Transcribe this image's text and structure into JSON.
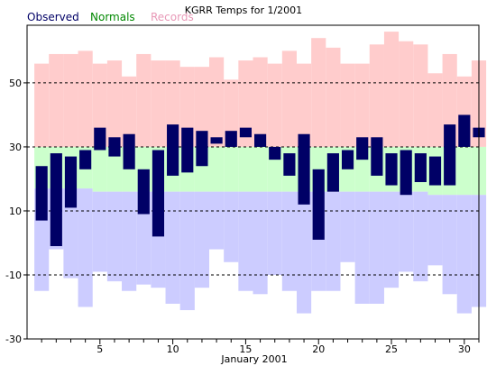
{
  "chart_data": {
    "type": "bar",
    "title": "KGRR Temps for 1/2001",
    "xlabel": "January 2001",
    "ylabel": "",
    "ylim": [
      -30,
      68
    ],
    "xlim": [
      0.5,
      31.5
    ],
    "yticks": [
      50,
      30,
      10,
      -10,
      -30
    ],
    "xticks": [
      5,
      10,
      15,
      20,
      25,
      30
    ],
    "grid": "dashed horizontal at 50, 30, 10, -10",
    "legend": {
      "placement": "top-left",
      "items": [
        {
          "name": "Observed",
          "color": "#000066"
        },
        {
          "name": "Normals",
          "color": "#008800"
        },
        {
          "name": "Records",
          "color": "#e899b7"
        }
      ]
    },
    "colors": {
      "observed": "#000066",
      "normal_low_band": "#ccccff",
      "normal_mid_band": "#ccffcc",
      "normal_high_band": "#ffcccc",
      "grid": "#000000"
    },
    "days": [
      1,
      2,
      3,
      4,
      5,
      6,
      7,
      8,
      9,
      10,
      11,
      12,
      13,
      14,
      15,
      16,
      17,
      18,
      19,
      20,
      21,
      22,
      23,
      24,
      25,
      26,
      27,
      28,
      29,
      30,
      31
    ],
    "normals": {
      "high": [
        30,
        30,
        30,
        30,
        30,
        30,
        30,
        30,
        30,
        30,
        30,
        30,
        30,
        30,
        30,
        30,
        30,
        30,
        30,
        30,
        30,
        30,
        30,
        30,
        30,
        30,
        30,
        30,
        30,
        30,
        30
      ],
      "low": [
        17,
        17,
        17,
        17,
        16,
        16,
        16,
        16,
        16,
        16,
        16,
        16,
        16,
        16,
        16,
        16,
        16,
        16,
        16,
        16,
        16,
        16,
        16,
        16,
        16,
        16,
        16,
        15,
        15,
        15,
        15
      ]
    },
    "records": {
      "high": [
        56,
        59,
        59,
        60,
        56,
        57,
        52,
        59,
        57,
        57,
        55,
        55,
        58,
        51,
        57,
        58,
        56,
        60,
        56,
        64,
        61,
        56,
        56,
        62,
        66,
        63,
        62,
        53,
        59,
        52,
        57
      ],
      "low": [
        -15,
        -2,
        -11,
        -20,
        -9,
        -12,
        -15,
        -13,
        -14,
        -19,
        -21,
        -14,
        -2,
        -6,
        -15,
        -16,
        -10,
        -15,
        -22,
        -15,
        -15,
        -6,
        -19,
        -19,
        -14,
        -9,
        -12,
        -7,
        -16,
        -22,
        -20
      ]
    },
    "series": [
      {
        "name": "Observed",
        "high": [
          24,
          28,
          27,
          29,
          36,
          33,
          34,
          23,
          29,
          37,
          36,
          35,
          33,
          35,
          36,
          34,
          30,
          28,
          34,
          23,
          28,
          29,
          33,
          33,
          28,
          29,
          28,
          27,
          37,
          40,
          36
        ],
        "low": [
          7,
          -1,
          11,
          23,
          29,
          27,
          23,
          9,
          2,
          21,
          22,
          24,
          31,
          30,
          33,
          30,
          26,
          21,
          12,
          1,
          16,
          23,
          26,
          21,
          18,
          15,
          19,
          18,
          18,
          30,
          33
        ]
      }
    ]
  }
}
